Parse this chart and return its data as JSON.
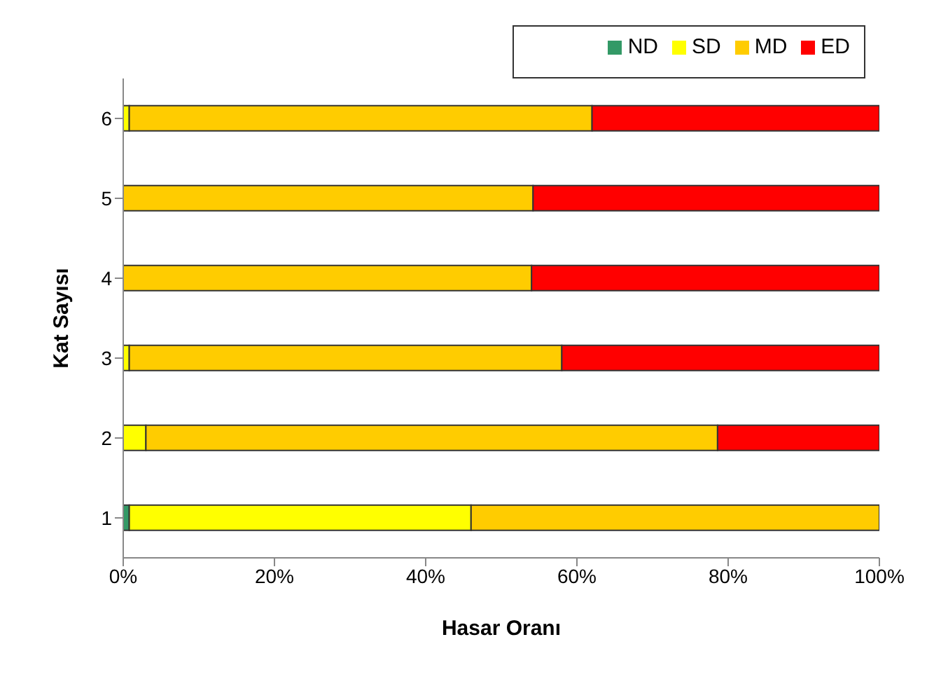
{
  "chart_data": {
    "type": "bar",
    "orientation": "horizontal",
    "stacked": true,
    "xlabel": "Hasar Oranı",
    "ylabel": "Kat Sayısı",
    "categories": [
      "6",
      "5",
      "4",
      "3",
      "2",
      "1"
    ],
    "series": [
      {
        "name": "ND",
        "color": "#339966",
        "values": [
          0,
          0,
          0,
          0,
          0,
          0.8
        ]
      },
      {
        "name": "SD",
        "color": "#ffff00",
        "values": [
          0.8,
          null,
          null,
          0.8,
          3,
          45.2
        ]
      },
      {
        "name": "MD",
        "color": "#ffcc00",
        "values": [
          61.2,
          54.2,
          54,
          57.2,
          75.6,
          54
        ]
      },
      {
        "name": "ED",
        "color": "#ff0000",
        "values": [
          38,
          45.8,
          46,
          42,
          21.4,
          0
        ]
      }
    ],
    "xlim": [
      0,
      100
    ],
    "xticks": [
      {
        "value": 0,
        "label": "0%"
      },
      {
        "value": 20,
        "label": "20%"
      },
      {
        "value": 40,
        "label": "40%"
      },
      {
        "value": 60,
        "label": "60%"
      },
      {
        "value": 80,
        "label": "80%"
      },
      {
        "value": 100,
        "label": "100%"
      }
    ],
    "legend": "top right",
    "grid": false
  }
}
